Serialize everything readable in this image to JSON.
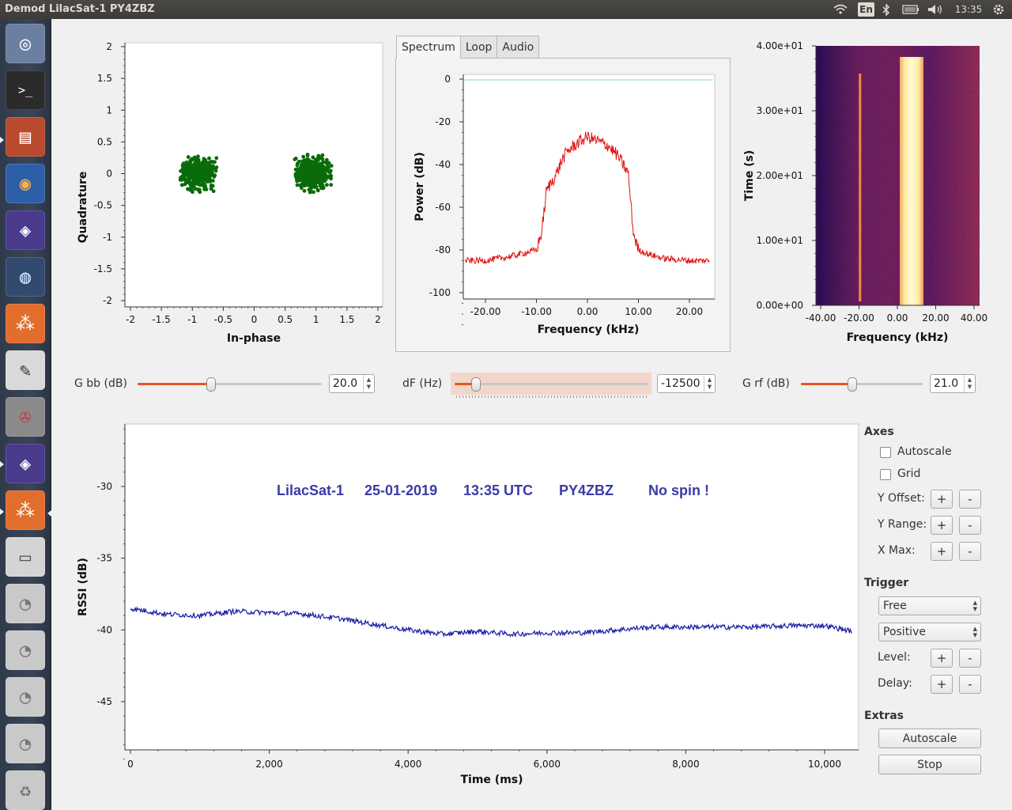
{
  "window": {
    "title": "Demod LilacSat-1  PY4ZBZ"
  },
  "topbar": {
    "lang": "En",
    "time": "13:35"
  },
  "launcher": {
    "items": [
      {
        "name": "ubuntu-dash-icon"
      },
      {
        "name": "terminal-icon"
      },
      {
        "name": "file-manager-icon"
      },
      {
        "name": "firefox-icon"
      },
      {
        "name": "gqrx-app-icon"
      },
      {
        "name": "globe-app-icon"
      },
      {
        "name": "gnuradio-icon"
      },
      {
        "name": "text-editor-icon"
      },
      {
        "name": "system-settings-icon"
      },
      {
        "name": "gqrx-app-icon-2"
      },
      {
        "name": "gnuradio-icon-2"
      },
      {
        "name": "drive-icon"
      },
      {
        "name": "disk-icon-1"
      },
      {
        "name": "disk-icon-2"
      },
      {
        "name": "disk-icon-3"
      },
      {
        "name": "disk-icon-4"
      },
      {
        "name": "trash-icon"
      }
    ]
  },
  "constellation": {
    "xlabel": "In-phase",
    "ylabel": "Quadrature",
    "xticks": [
      "-2",
      "-1.5",
      "-1",
      "-0.5",
      "0",
      "0.5",
      "1",
      "1.5",
      "2"
    ],
    "yticks": [
      "2",
      "1.5",
      "1",
      "0.5",
      "0",
      "-0.5",
      "-1",
      "-1.5",
      "-2"
    ],
    "point_color": "#0a6b0a"
  },
  "tabs": {
    "spectrum": "Spectrum",
    "loop": "Loop",
    "audio": "Audio"
  },
  "spectrum": {
    "xlabel": "Frequency (kHz)",
    "ylabel": "Power (dB)",
    "xticks": [
      "-20.00",
      "-10.00",
      "0.00",
      "10.00",
      "20.00"
    ],
    "yticks": [
      "0",
      "-20",
      "-40",
      "-60",
      "-80",
      "-100"
    ],
    "line_color": "#dd1111"
  },
  "waterfall": {
    "xlabel": "Frequency (kHz)",
    "ylabel": "Time (s)",
    "xticks": [
      "-40.00",
      "-20.00",
      "0.00",
      "20.00",
      "40.00"
    ],
    "yticks": [
      "4.00e+01",
      "3.00e+01",
      "2.00e+01",
      "1.00e+01",
      "0.00e+00"
    ]
  },
  "controls": {
    "gbb": {
      "label": "G bb (dB)",
      "value": "20.0",
      "level": 0.4
    },
    "df": {
      "label": "dF (Hz)",
      "value": "-12500",
      "level": 0.11
    },
    "grf": {
      "label": "G rf (dB)",
      "value": "21.0",
      "level": 0.42
    }
  },
  "rssi": {
    "xlabel": "Time (ms)",
    "ylabel": "RSSI (dB)",
    "xticks": [
      "0",
      "2,000",
      "4,000",
      "6,000",
      "8,000",
      "10,000"
    ],
    "yticks": [
      "-30",
      "-35",
      "-40",
      "-45"
    ],
    "annotation": {
      "sat": "LilacSat-1",
      "date": "25-01-2019",
      "time": "13:35 UTC",
      "call": "PY4ZBZ",
      "spin": "No spin !"
    },
    "line_color": "#1a1aa6",
    "annotation_color": "#3a3aa8"
  },
  "chart_data": [
    {
      "type": "scatter",
      "title": "",
      "xlabel": "In-phase",
      "ylabel": "Quadrature",
      "xlim": [
        -2,
        2
      ],
      "ylim": [
        -2,
        2
      ],
      "series": [
        {
          "cluster_center": [
            -0.9,
            0.0
          ],
          "spread": [
            0.3,
            0.25
          ]
        },
        {
          "cluster_center": [
            0.95,
            0.0
          ],
          "spread": [
            0.3,
            0.25
          ]
        }
      ]
    },
    {
      "type": "line",
      "title": "",
      "xlabel": "Frequency (kHz)",
      "ylabel": "Power (dB)",
      "xlim": [
        -24,
        24
      ],
      "ylim": [
        -100,
        0
      ],
      "x": [
        -24,
        -20,
        -15,
        -10,
        -9,
        -8,
        -6,
        -5,
        -4,
        -2,
        0,
        2,
        4,
        6,
        8,
        9,
        10,
        12,
        15,
        20,
        24
      ],
      "y": [
        -85,
        -85,
        -83,
        -80,
        -72,
        -52,
        -44,
        -38,
        -34,
        -30,
        -27,
        -29,
        -31,
        -36,
        -44,
        -72,
        -80,
        -82,
        -84,
        -85,
        -85
      ]
    },
    {
      "type": "line",
      "title": "",
      "xlabel": "Time (ms)",
      "ylabel": "RSSI (dB)",
      "xlim": [
        0,
        10500
      ],
      "ylim": [
        -48,
        -26
      ],
      "x": [
        0,
        500,
        1000,
        1500,
        2000,
        2500,
        3000,
        3500,
        4000,
        4500,
        5000,
        5500,
        6000,
        6500,
        7000,
        7500,
        8000,
        8500,
        9000,
        9500,
        10000,
        10400
      ],
      "y": [
        -38.5,
        -38.9,
        -39.0,
        -38.7,
        -38.8,
        -38.9,
        -39.2,
        -39.6,
        -40.0,
        -40.3,
        -40.1,
        -40.3,
        -40.2,
        -40.2,
        -40.0,
        -39.8,
        -39.8,
        -39.8,
        -39.8,
        -39.7,
        -39.7,
        -40.1
      ]
    }
  ],
  "side": {
    "axes": "Axes",
    "autoscale_chk": "Autoscale",
    "grid_chk": "Grid",
    "yoffset": "Y Offset:",
    "yrange": "Y Range:",
    "xmax": "X Max:",
    "plus": "+",
    "minus": "-",
    "trigger": "Trigger",
    "trigger_mode": "Free",
    "trigger_slope": "Positive",
    "level": "Level:",
    "delay": "Delay:",
    "extras": "Extras",
    "autoscale_btn": "Autoscale",
    "stop_btn": "Stop"
  }
}
